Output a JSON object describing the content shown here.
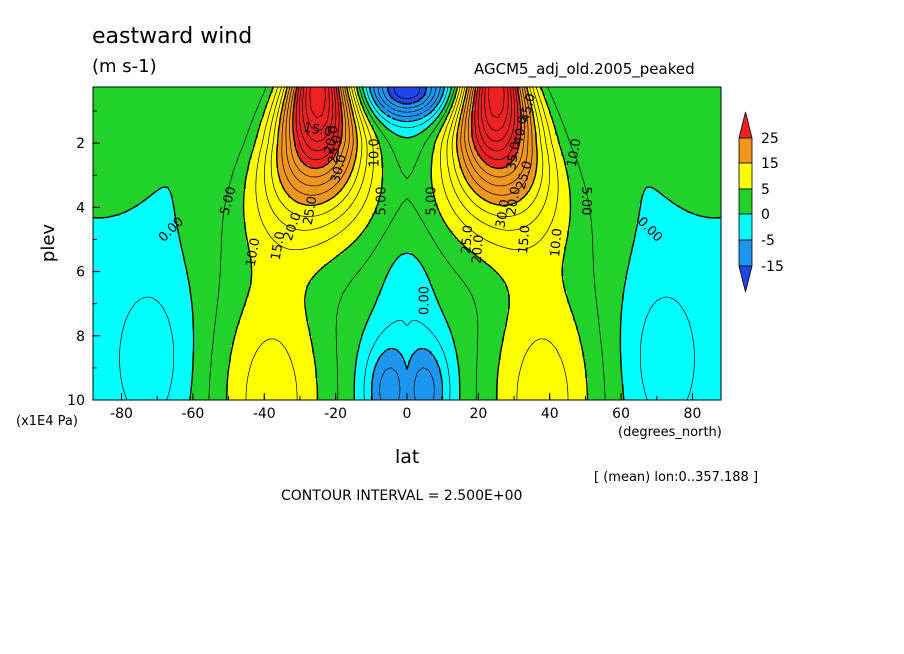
{
  "header": {
    "title": "eastward wind",
    "units": "(m s-1)",
    "model": "AGCM5_adj_old.2005_peaked"
  },
  "footer": {
    "y_unit": "(x1E4 Pa)",
    "x_unit": "(degrees_north)",
    "lon_mean": "[ (mean) lon:0..357.188 ]",
    "contour_interval": "CONTOUR INTERVAL = 2.500E+00"
  },
  "chart_data": {
    "type": "heatmap",
    "subtype": "filled-contour",
    "title": "eastward wind",
    "units": "(m s-1)",
    "xlabel": "lat",
    "ylabel": "plev",
    "xlim": [
      -88,
      88
    ],
    "ylim": [
      0.25,
      10
    ],
    "y_inverted": true,
    "x_ticks": [
      -80,
      -60,
      -40,
      -20,
      0,
      20,
      40,
      60,
      80
    ],
    "y_ticks": [
      2,
      4,
      6,
      8,
      10
    ],
    "contour_interval": 2.5,
    "colorbar": {
      "labels": [
        "25",
        "15",
        "5",
        "0",
        "-5",
        "-15"
      ],
      "bands": [
        {
          "range": [
            ">25"
          ],
          "color": "#ee2222"
        },
        {
          "range": [
            15,
            25
          ],
          "color": "#f0961e"
        },
        {
          "range": [
            5,
            15
          ],
          "color": "#ffff00"
        },
        {
          "range": [
            0,
            5
          ],
          "color": "#22d22a"
        },
        {
          "range": [
            -5,
            0
          ],
          "color": "#00ffff"
        },
        {
          "range": [
            -15,
            -5
          ],
          "color": "#1e96f0"
        },
        {
          "range": [
            "<-15"
          ],
          "color": "#1e46e6"
        }
      ]
    },
    "jets": [
      {
        "lat": -25,
        "plev": 0.3,
        "peak": 40
      },
      {
        "lat": 25,
        "plev": 0.3,
        "peak": 40
      }
    ],
    "contour_labels": [
      "0.00",
      "5.00",
      "10.0",
      "15.0",
      "20.0",
      "25.0",
      "30.0",
      "35.0",
      "40.0",
      "45.0"
    ]
  },
  "colors": {
    "red": "#ee2222",
    "orange": "#f0961e",
    "yellow": "#ffff00",
    "green": "#22d22a",
    "cyan": "#00ffff",
    "blue": "#1e96f0",
    "darkblue": "#1e46e6"
  }
}
